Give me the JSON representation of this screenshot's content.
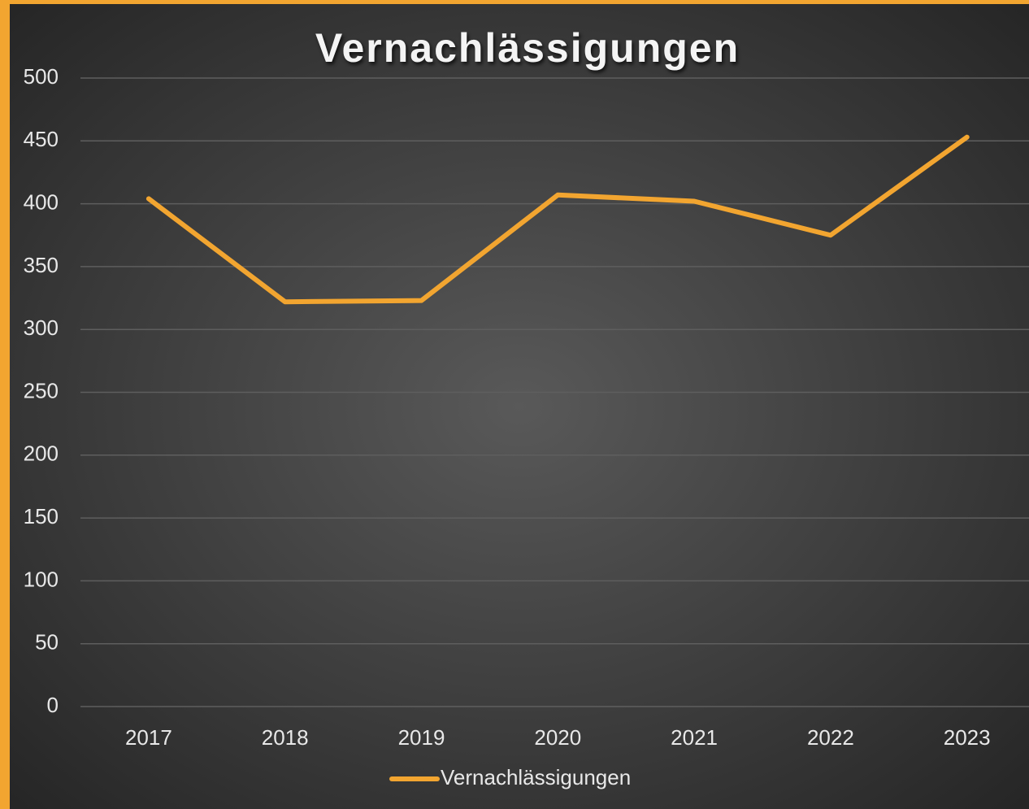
{
  "chart_data": {
    "type": "line",
    "title": "Vernachlässigungen",
    "categories": [
      "2017",
      "2018",
      "2019",
      "2020",
      "2021",
      "2022",
      "2023"
    ],
    "series": [
      {
        "name": "Vernachlässigungen",
        "color": "#f2a530",
        "values": [
          404,
          322,
          323,
          407,
          402,
          375,
          453
        ]
      }
    ],
    "ylim": [
      0,
      500
    ],
    "yticks": [
      0,
      50,
      100,
      150,
      200,
      250,
      300,
      350,
      400,
      450,
      500
    ],
    "grid": true,
    "legend": "bottom"
  }
}
